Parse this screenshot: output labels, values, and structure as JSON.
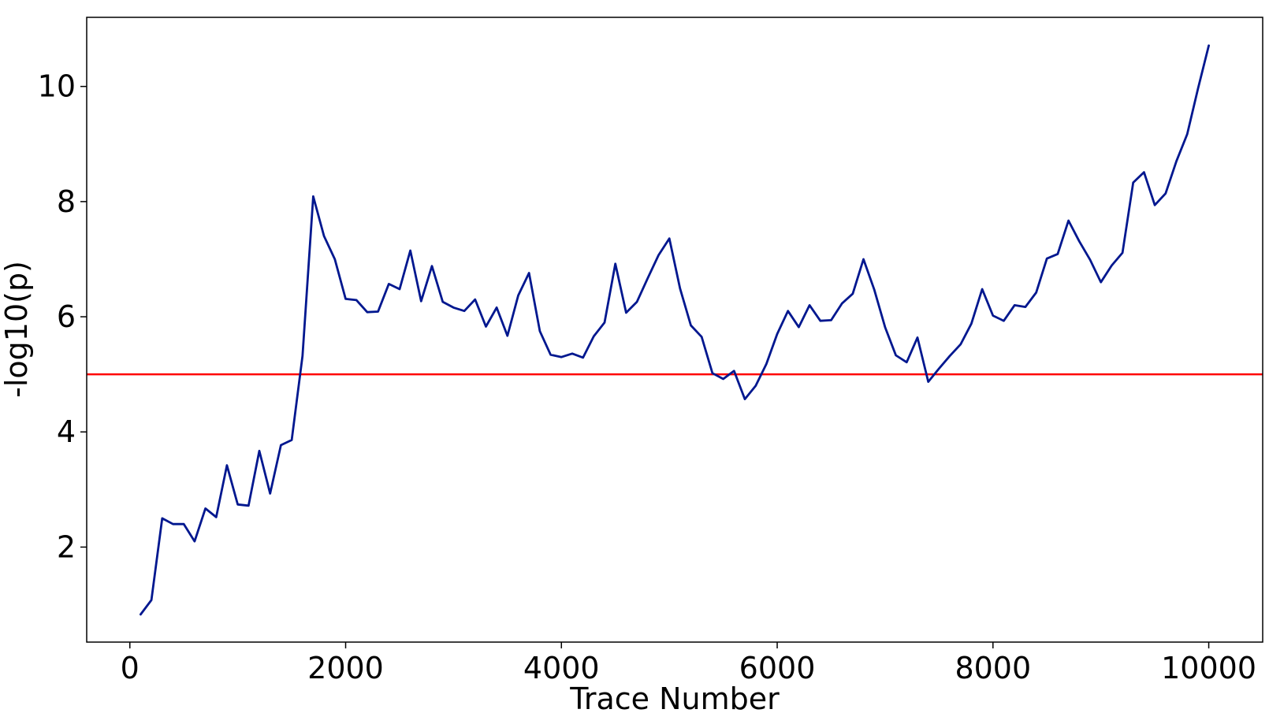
{
  "chart_data": {
    "type": "line",
    "title": "",
    "xlabel": "Trace Number",
    "ylabel": "-log10(p)",
    "xlim": [
      -400,
      10500
    ],
    "ylim": [
      0.35,
      11.2
    ],
    "xticks": [
      0,
      2000,
      4000,
      6000,
      8000,
      10000
    ],
    "yticks": [
      2,
      4,
      6,
      8,
      10
    ],
    "grid": false,
    "legend": "none",
    "series": [
      {
        "color": "#00178f",
        "x": [
          100,
          200,
          300,
          400,
          500,
          600,
          700,
          800,
          900,
          1000,
          1100,
          1200,
          1300,
          1400,
          1500,
          1600,
          1700,
          1800,
          1900,
          2000,
          2100,
          2200,
          2300,
          2400,
          2500,
          2600,
          2700,
          2800,
          2900,
          3000,
          3100,
          3200,
          3300,
          3400,
          3500,
          3600,
          3700,
          3800,
          3900,
          4000,
          4100,
          4200,
          4300,
          4400,
          4500,
          4600,
          4700,
          4800,
          4900,
          5000,
          5100,
          5200,
          5300,
          5400,
          5500,
          5600,
          5700,
          5800,
          5900,
          6000,
          6100,
          6200,
          6300,
          6400,
          6500,
          6600,
          6700,
          6800,
          6900,
          7000,
          7100,
          7200,
          7300,
          7400,
          7500,
          7600,
          7700,
          7800,
          7900,
          8000,
          8100,
          8200,
          8300,
          8400,
          8500,
          8600,
          8700,
          8800,
          8900,
          9000,
          9100,
          9200,
          9300,
          9400,
          9500,
          9600,
          9700,
          9800,
          9900,
          10000
        ],
        "y": [
          0.83,
          1.08,
          2.5,
          2.4,
          2.4,
          2.1,
          2.67,
          2.52,
          3.42,
          2.74,
          2.72,
          3.67,
          2.93,
          3.77,
          3.86,
          5.32,
          8.09,
          7.4,
          7.0,
          6.31,
          6.29,
          6.08,
          6.09,
          6.57,
          6.48,
          7.15,
          6.27,
          6.88,
          6.26,
          6.16,
          6.1,
          6.3,
          5.83,
          6.16,
          5.67,
          6.37,
          6.76,
          5.75,
          5.34,
          5.3,
          5.36,
          5.29,
          5.66,
          5.9,
          6.92,
          6.07,
          6.26,
          6.67,
          7.07,
          7.36,
          6.49,
          5.85,
          5.65,
          5.02,
          4.92,
          5.06,
          4.57,
          4.8,
          5.18,
          5.7,
          6.1,
          5.82,
          6.2,
          5.93,
          5.94,
          6.23,
          6.4,
          7.0,
          6.47,
          5.82,
          5.33,
          5.21,
          5.64,
          4.87,
          5.1,
          5.32,
          5.52,
          5.88,
          6.48,
          6.02,
          5.93,
          6.2,
          6.17,
          6.42,
          7.01,
          7.09,
          7.67,
          7.31,
          6.99,
          6.6,
          6.89,
          7.11,
          8.33,
          8.51,
          7.94,
          8.14,
          8.7,
          9.17,
          9.96,
          10.71
        ]
      }
    ],
    "threshold": {
      "y": 5,
      "color": "#ff0000"
    },
    "colors": {
      "line": "#00178f",
      "threshold": "#ff0000",
      "axes": "#000000"
    }
  }
}
